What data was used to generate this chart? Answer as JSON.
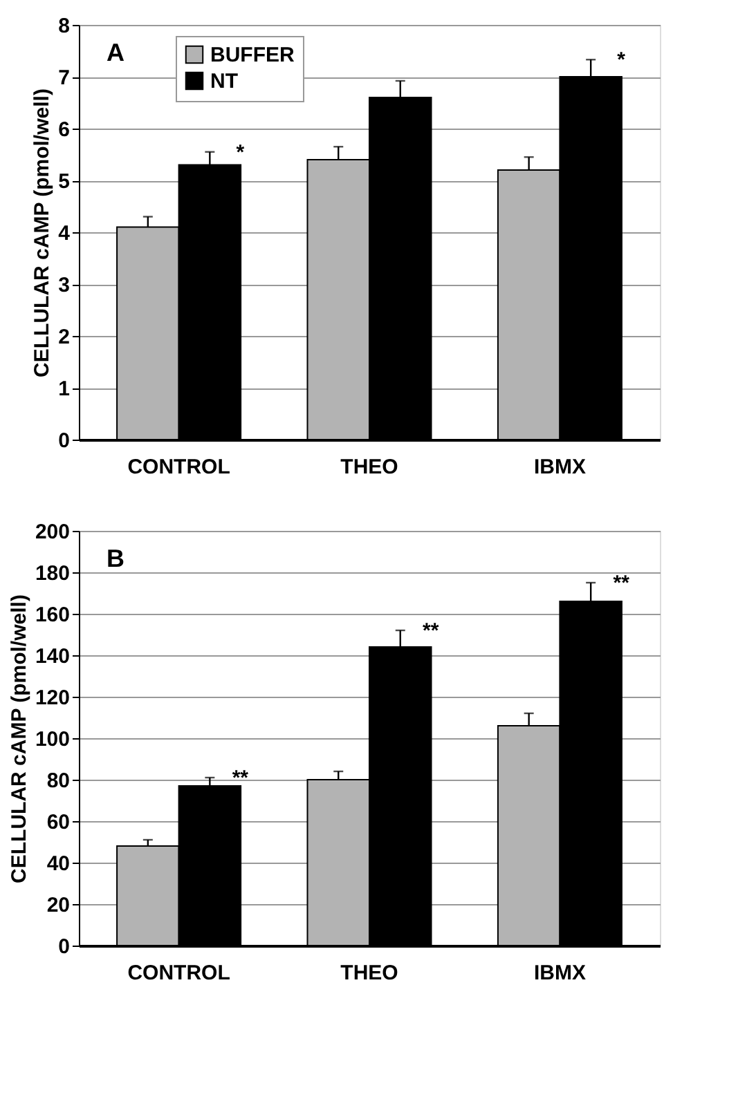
{
  "chart_data": [
    {
      "type": "bar",
      "categories": [
        "CONTROL",
        "THEO",
        "IBMX"
      ],
      "ylabel": "CELLULAR cAMP (pmol/well)",
      "ylim": [
        0,
        8
      ],
      "yticks": [
        0,
        1,
        2,
        3,
        4,
        5,
        6,
        7,
        8
      ],
      "grid": "y",
      "legend": "top left",
      "series": [
        {
          "name": "BUFFER",
          "color": "#b3b3b3",
          "values": [
            4.1,
            5.4,
            5.2
          ],
          "errors": [
            [
              4.1,
              4.3
            ],
            [
              5.4,
              5.65
            ],
            [
              5.2,
              5.45
            ]
          ]
        },
        {
          "name": "NT",
          "color": "#000000",
          "values": [
            5.3,
            6.6,
            7.0
          ],
          "errors": [
            [
              5.3,
              5.55
            ],
            [
              6.6,
              6.92
            ],
            [
              7.0,
              7.33
            ]
          ]
        }
      ],
      "annotations": [
        "A",
        "*",
        "*"
      ]
    },
    {
      "type": "bar",
      "categories": [
        "CONTROL",
        "THEO",
        "IBMX"
      ],
      "ylabel": "CELLULAR cAMP (pmol/well)",
      "ylim": [
        0,
        200
      ],
      "yticks": [
        0,
        20,
        40,
        60,
        80,
        100,
        120,
        140,
        160,
        180,
        200
      ],
      "grid": "y",
      "legend": "top left",
      "series": [
        {
          "name": "BUFFER",
          "color": "#b3b3b3",
          "values": [
            48,
            80,
            106
          ],
          "errors": [
            [
              48,
              51
            ],
            [
              80,
              84
            ],
            [
              106,
              112
            ]
          ]
        },
        {
          "name": "NT",
          "color": "#000000",
          "values": [
            77,
            144,
            166
          ],
          "errors": [
            [
              77,
              81
            ],
            [
              144,
              152
            ],
            [
              166,
              175
            ]
          ]
        }
      ],
      "annotations": [
        "B",
        "**",
        "**",
        "**"
      ]
    }
  ]
}
